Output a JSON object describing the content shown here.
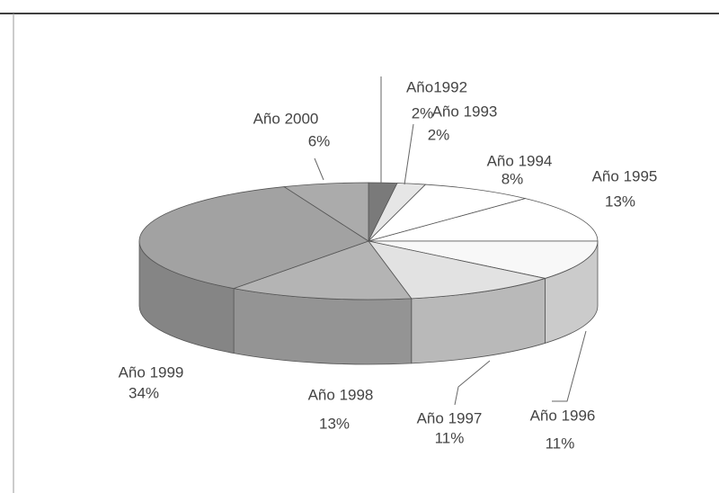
{
  "chart_data": {
    "type": "pie3d",
    "categories": [
      "Año1992",
      "Año 1993",
      "Año 1994",
      "Año 1995",
      "Año 1996",
      "Año 1997",
      "Año 1998",
      "Año 1999",
      "Año 2000"
    ],
    "values": [
      2,
      2,
      8,
      13,
      11,
      11,
      13,
      34,
      6
    ],
    "value_labels": [
      "2%",
      "2%",
      "8%",
      "13%",
      "11%",
      "11%",
      "13%",
      "34%",
      "6%"
    ],
    "colors": [
      "#7a7a7a",
      "#e6e6e6",
      "#ffffff",
      "#ffffff",
      "#f8f8f8",
      "#e2e2e2",
      "#b4b4b4",
      "#a2a2a2",
      "#ababab"
    ]
  }
}
